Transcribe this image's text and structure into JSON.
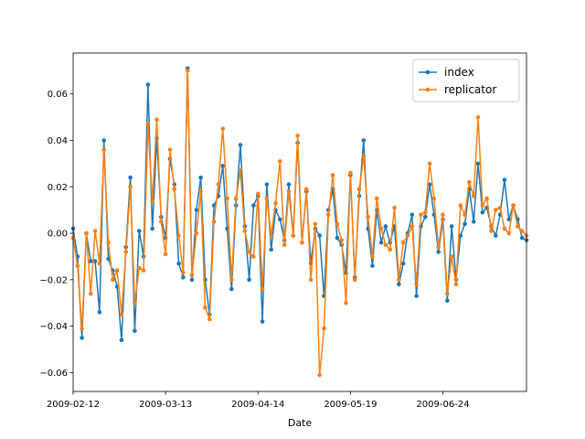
{
  "chart_data": {
    "type": "line",
    "x_label": "Date",
    "categories": [
      "2009-02-12",
      null,
      null,
      null,
      null,
      null,
      null,
      null,
      null,
      null,
      null,
      null,
      null,
      null,
      null,
      null,
      null,
      null,
      null,
      null,
      null,
      "2009-03-13",
      null,
      null,
      null,
      null,
      null,
      null,
      null,
      null,
      null,
      null,
      null,
      null,
      null,
      null,
      null,
      null,
      null,
      null,
      null,
      null,
      "2009-04-14",
      null,
      null,
      null,
      null,
      null,
      null,
      null,
      null,
      null,
      null,
      null,
      null,
      null,
      null,
      null,
      null,
      null,
      null,
      null,
      null,
      "2009-05-19",
      null,
      null,
      null,
      null,
      null,
      null,
      null,
      null,
      null,
      null,
      null,
      null,
      null,
      null,
      null,
      null,
      null,
      null,
      null,
      null,
      "2009-06-24",
      null,
      null,
      null,
      null,
      null,
      null,
      null,
      null,
      null,
      null,
      null,
      null,
      null,
      null,
      null,
      null,
      null,
      null,
      null
    ],
    "series": [
      {
        "name": "index",
        "color": "#1f77b4",
        "values": [
          0.002,
          -0.01,
          -0.045,
          0.0,
          -0.012,
          -0.012,
          -0.034,
          0.04,
          -0.011,
          -0.016,
          -0.023,
          -0.046,
          -0.006,
          0.024,
          -0.042,
          0.001,
          -0.01,
          0.064,
          0.002,
          0.041,
          0.007,
          -0.002,
          0.032,
          0.021,
          -0.013,
          -0.019,
          0.071,
          -0.02,
          0.01,
          0.024,
          -0.02,
          -0.035,
          0.012,
          0.016,
          0.029,
          0.002,
          -0.024,
          0.012,
          0.038,
          0.003,
          -0.02,
          0.012,
          0.016,
          -0.038,
          0.021,
          -0.007,
          0.01,
          0.006,
          -0.003,
          0.021,
          -0.001,
          0.039,
          -0.004,
          0.018,
          -0.013,
          0.002,
          -0.001,
          -0.027,
          0.01,
          0.019,
          -0.002,
          -0.005,
          -0.017,
          0.025,
          -0.019,
          0.016,
          0.04,
          0.002,
          -0.014,
          0.01,
          -0.004,
          0.003,
          -0.004,
          0.003,
          -0.022,
          -0.013,
          0.0,
          0.008,
          -0.027,
          0.003,
          0.007,
          0.021,
          0.008,
          -0.008,
          0.006,
          -0.029,
          0.003,
          -0.02,
          -0.001,
          0.004,
          0.019,
          0.005,
          0.03,
          0.009,
          0.011,
          0.003,
          -0.001,
          0.008,
          0.023,
          0.006,
          0.012,
          0.006,
          -0.002,
          -0.003
        ]
      },
      {
        "name": "replicator",
        "color": "#ff7f0e",
        "values": [
          -0.002,
          -0.014,
          -0.041,
          0.0,
          -0.026,
          0.001,
          -0.013,
          0.036,
          -0.004,
          -0.02,
          -0.016,
          -0.035,
          -0.008,
          0.02,
          -0.03,
          -0.015,
          -0.016,
          0.047,
          0.014,
          0.049,
          0.005,
          -0.009,
          0.036,
          0.019,
          -0.001,
          -0.017,
          0.07,
          -0.018,
          0.0,
          0.018,
          -0.032,
          -0.037,
          0.005,
          0.021,
          0.045,
          0.015,
          -0.02,
          0.015,
          0.027,
          0.001,
          -0.008,
          -0.01,
          0.017,
          -0.024,
          0.015,
          -0.001,
          0.013,
          0.031,
          -0.005,
          0.018,
          -0.001,
          0.042,
          -0.004,
          0.019,
          -0.02,
          0.004,
          -0.061,
          -0.041,
          0.008,
          0.025,
          0.004,
          -0.003,
          -0.03,
          0.026,
          -0.02,
          0.019,
          0.033,
          0.007,
          -0.01,
          0.015,
          0.002,
          -0.005,
          -0.007,
          0.011,
          -0.02,
          -0.004,
          -0.001,
          0.003,
          -0.022,
          0.008,
          0.009,
          0.03,
          0.015,
          -0.006,
          0.008,
          -0.026,
          -0.01,
          -0.022,
          0.012,
          0.008,
          0.022,
          0.016,
          0.05,
          0.012,
          0.015,
          0.001,
          0.01,
          0.011,
          0.002,
          0.0,
          0.012,
          0.003,
          0.001,
          -0.001
        ]
      }
    ],
    "ylim": [
      -0.0681,
      0.0776
    ],
    "yticks": [
      {
        "value": -0.06,
        "label": "−0.06"
      },
      {
        "value": -0.04,
        "label": "−0.04"
      },
      {
        "value": -0.02,
        "label": "−0.02"
      },
      {
        "value": 0,
        "label": "0.00"
      },
      {
        "value": 0.02,
        "label": "0.02"
      },
      {
        "value": 0.04,
        "label": "0.04"
      },
      {
        "value": 0.06,
        "label": "0.06"
      }
    ],
    "legend": "upper right",
    "grid": false
  }
}
